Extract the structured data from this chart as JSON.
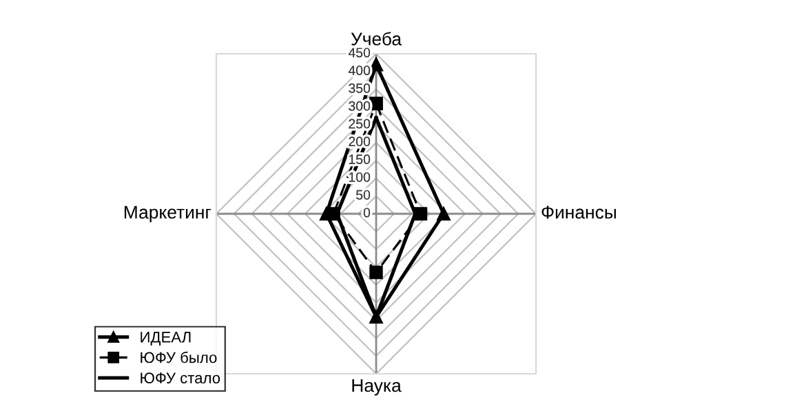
{
  "chart_data": {
    "type": "radar",
    "categories": [
      "Учеба",
      "Финансы",
      "Наука",
      "Маркетинг"
    ],
    "ylim": [
      0,
      450
    ],
    "yticks": [
      0,
      50,
      100,
      150,
      200,
      250,
      300,
      350,
      400,
      450
    ],
    "grid": true,
    "legend": "bottom left",
    "series": [
      {
        "name": "ИДЕАЛ",
        "color": "#000000",
        "values": [
          420,
          190,
          290,
          140
        ],
        "marker": "triangle",
        "line_style": "solid"
      },
      {
        "name": "ЮФУ было",
        "color": "#000000",
        "values": [
          310,
          125,
          165,
          120
        ],
        "marker": "square",
        "line_style": "dashed"
      },
      {
        "name": "ЮФУ стало",
        "color": "#000000",
        "values": [
          270,
          110,
          290,
          110
        ],
        "marker": "none",
        "line_style": "solid"
      }
    ]
  }
}
